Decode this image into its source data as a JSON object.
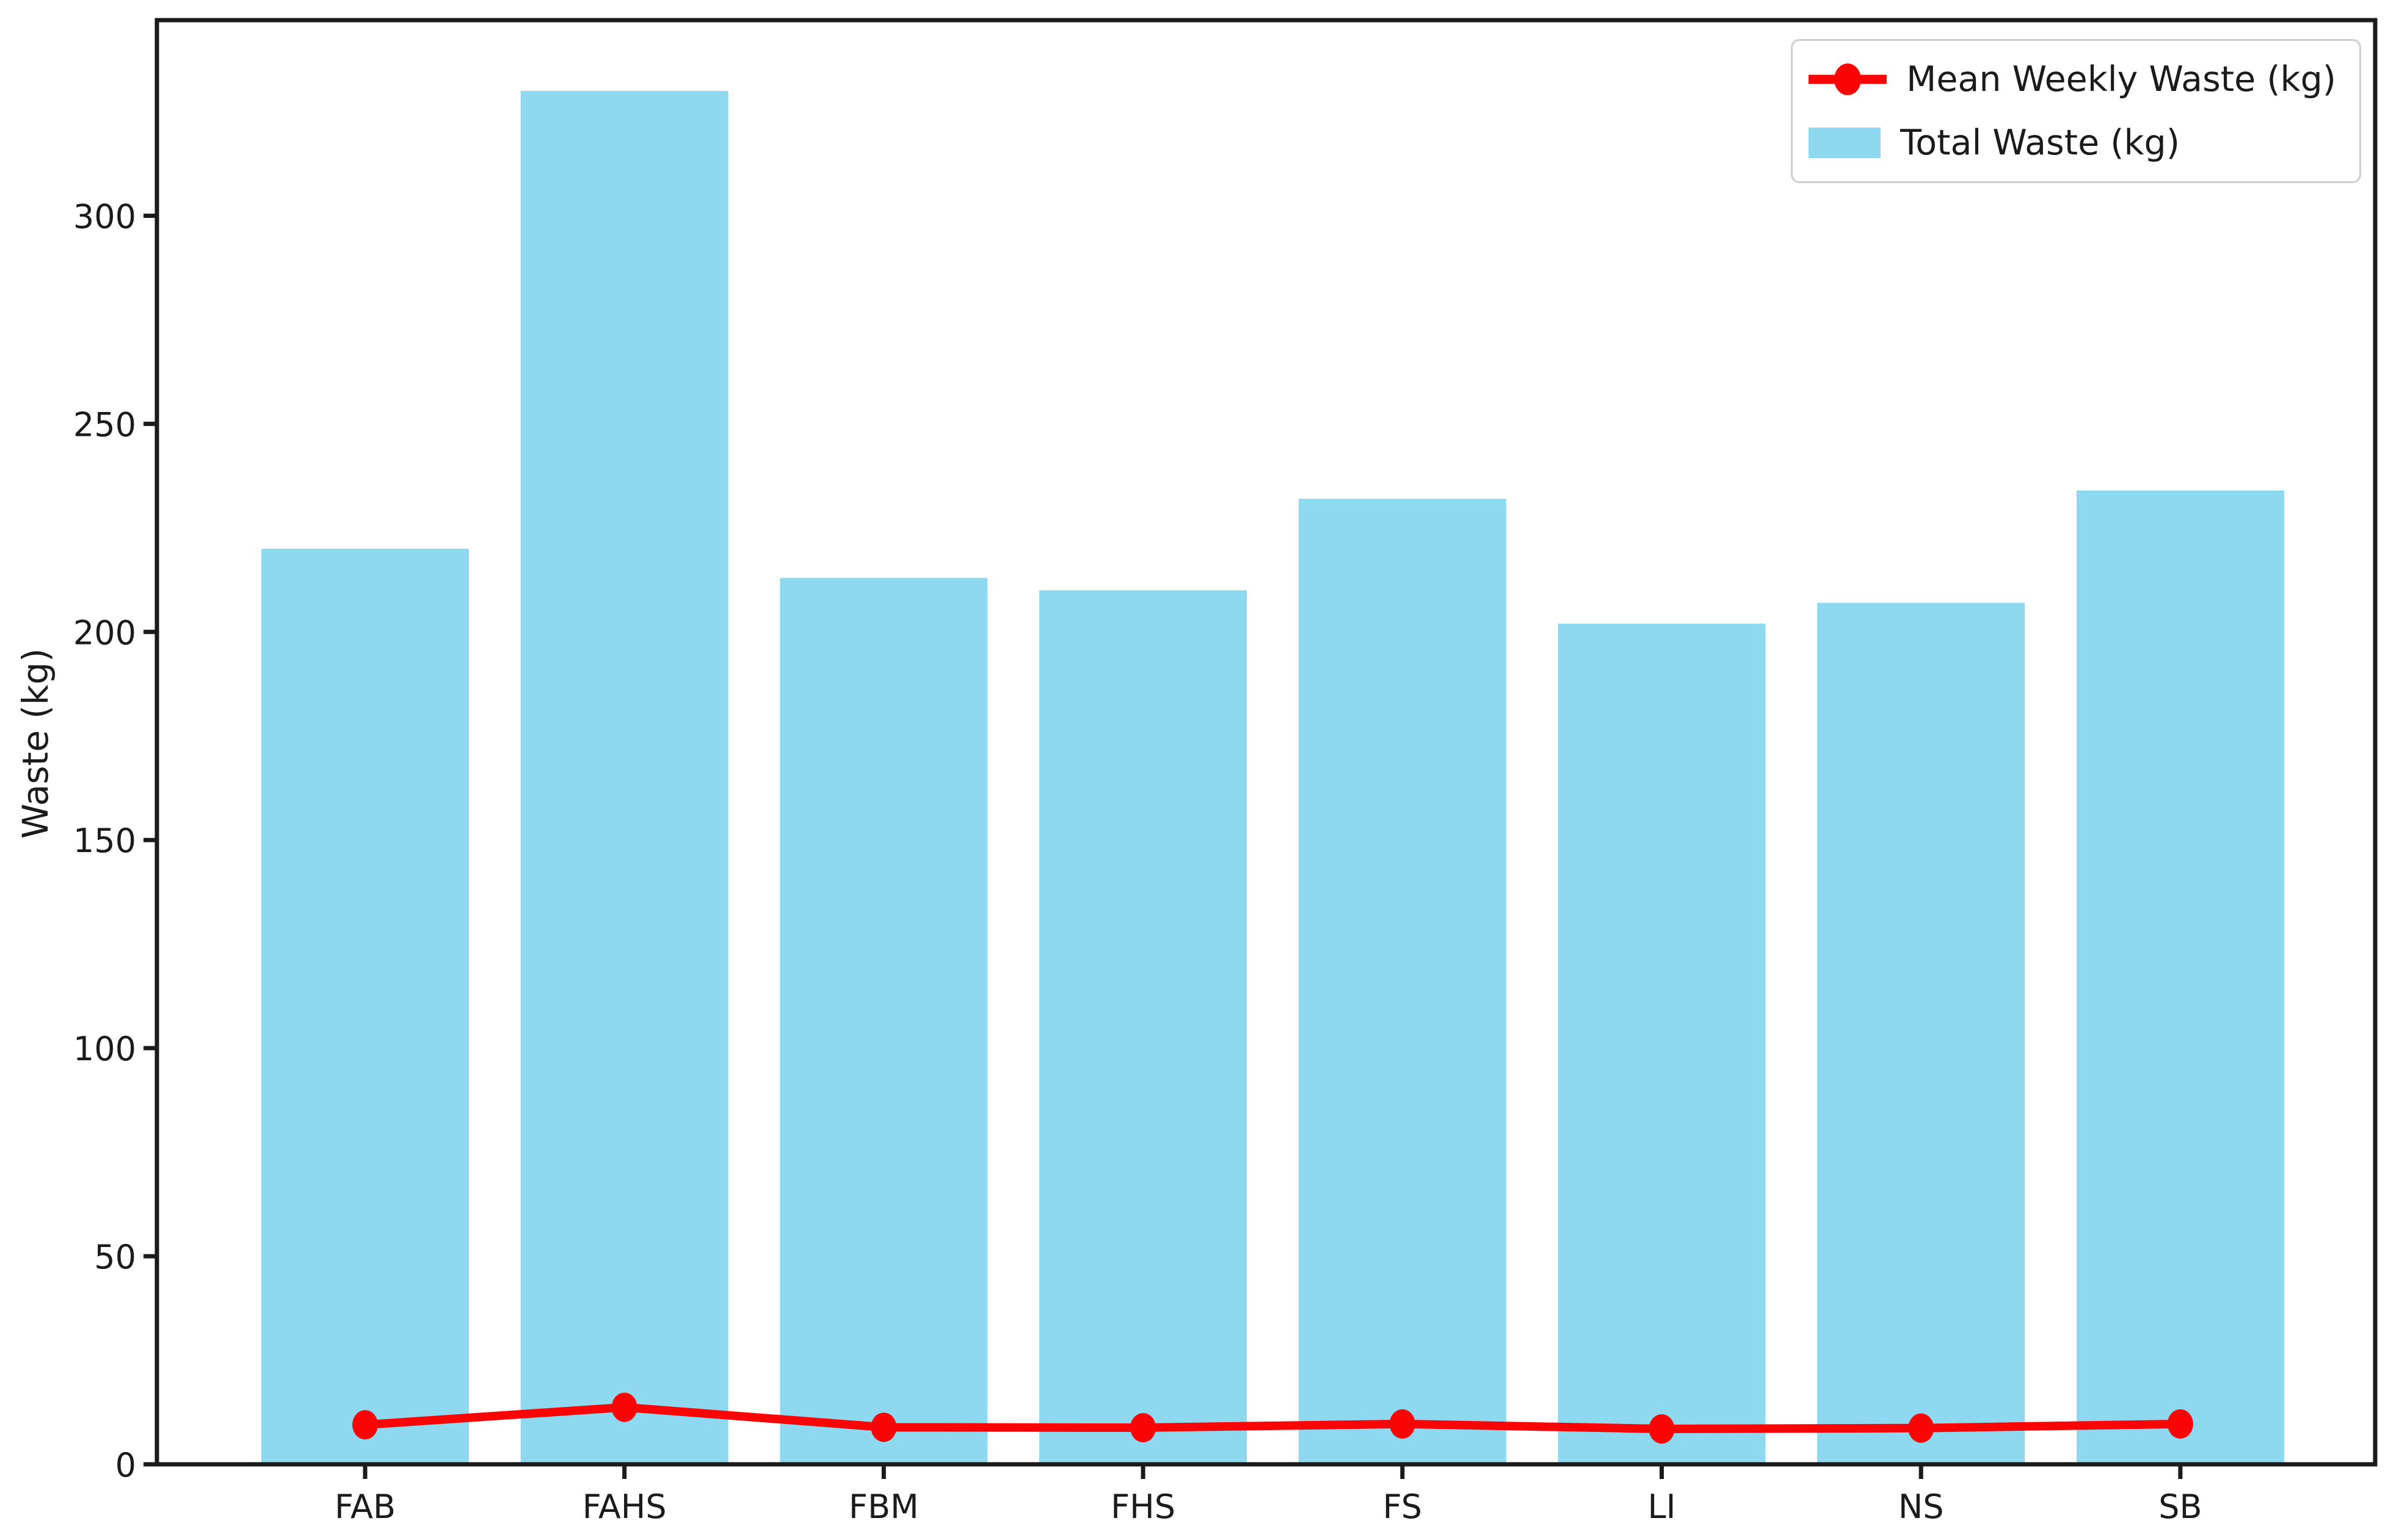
{
  "chart_data": {
    "type": "bar",
    "title": "",
    "xlabel": "",
    "ylabel": "Waste (kg)",
    "categories": [
      "FAB",
      "FAHS",
      "FBM",
      "FHS",
      "FS",
      "LI",
      "NS",
      "SB"
    ],
    "series": [
      {
        "name": "Total Waste (kg)",
        "type": "bar",
        "color": "#8ed9f0",
        "values": [
          220,
          330,
          213,
          210,
          232,
          202,
          207,
          234
        ]
      },
      {
        "name": "Mean Weekly Waste (kg)",
        "type": "line",
        "color": "#f90505",
        "values": [
          9.5,
          13.7,
          8.9,
          8.8,
          9.7,
          8.5,
          8.7,
          9.7
        ]
      }
    ],
    "ylim": [
      0,
      347
    ],
    "yticks": [
      0,
      50,
      100,
      150,
      200,
      250,
      300
    ],
    "grid": false,
    "legend_position": "upper right"
  },
  "legend": {
    "items": [
      {
        "label": "Mean Weekly Waste (kg)"
      },
      {
        "label": "Total Waste (kg)"
      }
    ]
  }
}
